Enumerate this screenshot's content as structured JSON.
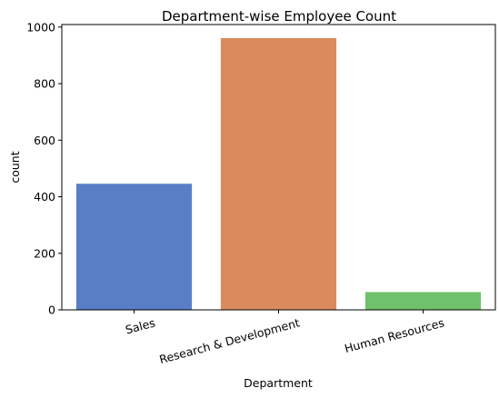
{
  "chart_data": {
    "type": "bar",
    "title": "Department-wise Employee Count",
    "xlabel": "Department",
    "ylabel": "count",
    "categories": [
      "Sales",
      "Research & Development",
      "Human Resources"
    ],
    "values": [
      446,
      961,
      63
    ],
    "colors": [
      "#5a7ec6",
      "#da8b5e",
      "#70c16c"
    ],
    "ylim": [
      0,
      1009
    ],
    "yticks": [
      0,
      200,
      400,
      600,
      800,
      1000
    ],
    "grid": false,
    "legend": "none"
  }
}
